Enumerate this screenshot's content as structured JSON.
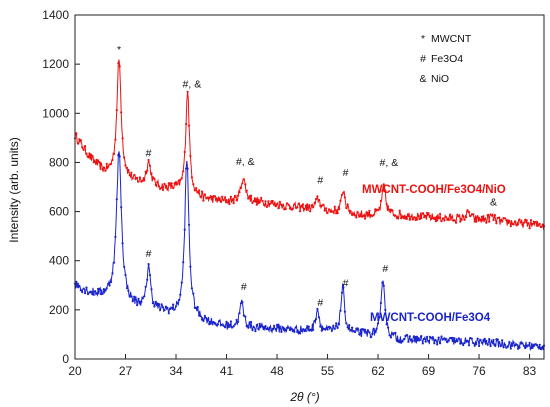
{
  "chart_data": {
    "type": "line",
    "xlabel": "2θ (°)",
    "ylabel": "Intensity (arb. units)",
    "xlim": [
      20,
      85
    ],
    "ylim": [
      0,
      1400
    ],
    "x_ticks": [
      "20",
      "27",
      "34",
      "41",
      "48",
      "55",
      "62",
      "69",
      "76",
      "83"
    ],
    "y_ticks": [
      "0",
      "200",
      "400",
      "600",
      "800",
      "1000",
      "1200",
      "1400"
    ],
    "grid": false,
    "legend": {
      "placement": "top-right",
      "entries": [
        {
          "symbol": "*",
          "label": "MWCNT"
        },
        {
          "symbol": "#",
          "label": "Fe3O4"
        },
        {
          "symbol": "&",
          "label": "NiO"
        }
      ]
    },
    "series": [
      {
        "name": "MWCNT-COOH/Fe3O4/NiO",
        "color": "#ee1111",
        "baseline": [
          [
            20,
            910
          ],
          [
            22,
            820
          ],
          [
            24,
            760
          ],
          [
            25.5,
            750
          ],
          [
            28,
            720
          ],
          [
            31,
            700
          ],
          [
            34,
            690
          ],
          [
            38,
            650
          ],
          [
            41,
            640
          ],
          [
            45,
            640
          ],
          [
            50,
            620
          ],
          [
            55,
            600
          ],
          [
            60,
            585
          ],
          [
            65,
            585
          ],
          [
            70,
            575
          ],
          [
            75,
            565
          ],
          [
            80,
            555
          ],
          [
            85,
            545
          ]
        ],
        "peaks": [
          [
            26.1,
            480,
            0.35
          ],
          [
            30.2,
            95,
            0.35
          ],
          [
            35.6,
            420,
            0.3
          ],
          [
            43.3,
            95,
            0.4
          ],
          [
            53.7,
            45,
            0.4
          ],
          [
            57.2,
            95,
            0.3
          ],
          [
            62.8,
            120,
            0.3
          ],
          [
            74.5,
            25,
            0.5
          ],
          [
            77.7,
            20,
            0.5
          ]
        ]
      },
      {
        "name": "MWCNT-COOH/Fe3O4",
        "color": "#1a24cc",
        "baseline": [
          [
            20,
            300
          ],
          [
            22,
            270
          ],
          [
            24,
            255
          ],
          [
            25.5,
            260
          ],
          [
            28,
            215
          ],
          [
            31,
            200
          ],
          [
            34,
            180
          ],
          [
            37,
            160
          ],
          [
            41,
            130
          ],
          [
            45,
            125
          ],
          [
            50,
            120
          ],
          [
            55,
            110
          ],
          [
            60,
            100
          ],
          [
            65,
            80
          ],
          [
            70,
            75
          ],
          [
            75,
            70
          ],
          [
            80,
            60
          ],
          [
            85,
            50
          ]
        ],
        "peaks": [
          [
            26.1,
            600,
            0.4
          ],
          [
            30.2,
            175,
            0.3
          ],
          [
            35.5,
            640,
            0.35
          ],
          [
            43.1,
            100,
            0.35
          ],
          [
            53.6,
            90,
            0.3
          ],
          [
            57.1,
            185,
            0.3
          ],
          [
            62.7,
            245,
            0.3
          ]
        ]
      }
    ],
    "annotations": [
      {
        "text": "*",
        "x": 26.1,
        "y": 1245
      },
      {
        "text": "#",
        "x": 30.2,
        "y": 825
      },
      {
        "text": "#, &",
        "x": 36.2,
        "y": 1105
      },
      {
        "text": "#, &",
        "x": 43.6,
        "y": 790
      },
      {
        "text": "#",
        "x": 54.0,
        "y": 715
      },
      {
        "text": "#",
        "x": 57.5,
        "y": 745
      },
      {
        "text": "#, &",
        "x": 63.5,
        "y": 785
      },
      {
        "text": "&",
        "x": 78.0,
        "y": 625
      },
      {
        "text": "#",
        "x": 30.2,
        "y": 415
      },
      {
        "text": "#",
        "x": 43.4,
        "y": 280
      },
      {
        "text": "#",
        "x": 54.0,
        "y": 215
      },
      {
        "text": "#",
        "x": 57.5,
        "y": 295
      },
      {
        "text": "#",
        "x": 63.0,
        "y": 355
      }
    ]
  }
}
